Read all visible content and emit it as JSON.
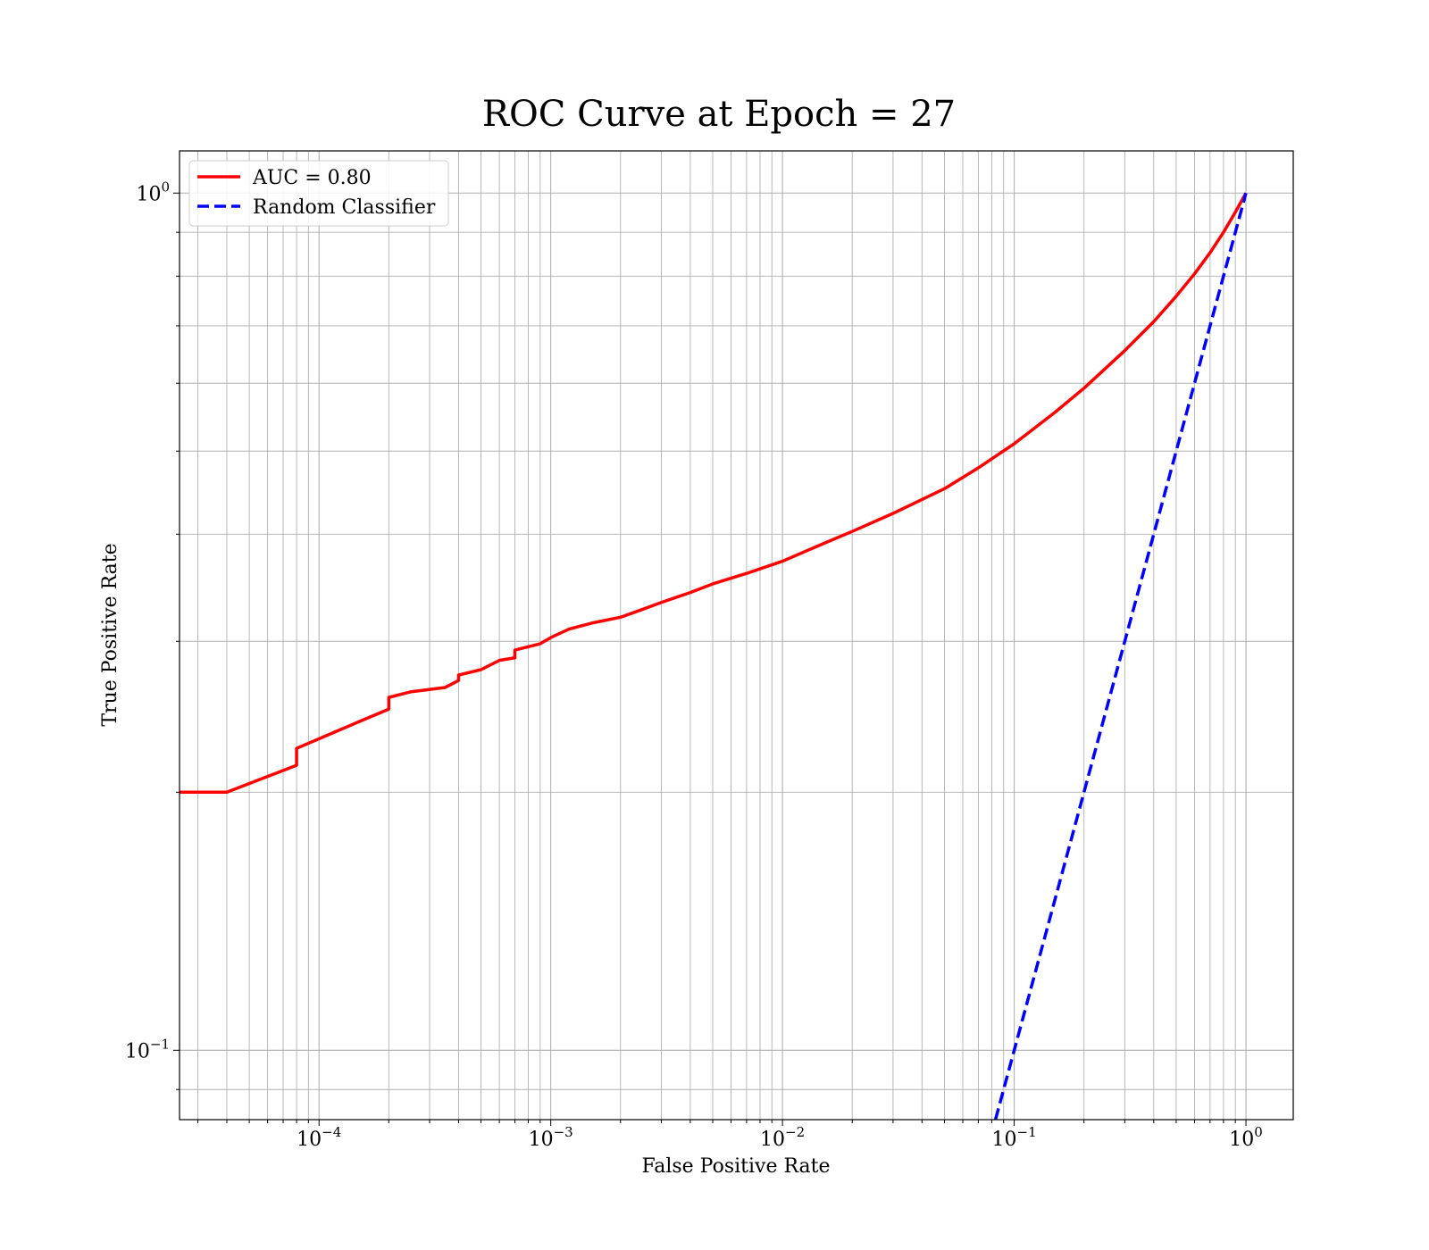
{
  "chart_data": {
    "type": "line",
    "title": "ROC Curve at Epoch = 27",
    "xlabel": "False Positive Rate",
    "ylabel": "True Positive Rate",
    "xscale": "log",
    "yscale": "log",
    "xlim": [
      2.5e-05,
      1.6
    ],
    "ylim": [
      0.083,
      1.12
    ],
    "grid": true,
    "legend_position": "top-left",
    "x_ticks": [
      {
        "value": 0.0001,
        "base": "10",
        "exp": "−4"
      },
      {
        "value": 0.001,
        "base": "10",
        "exp": "−3"
      },
      {
        "value": 0.01,
        "base": "10",
        "exp": "−2"
      },
      {
        "value": 0.1,
        "base": "10",
        "exp": "−1"
      },
      {
        "value": 1,
        "base": "10",
        "exp": "0"
      }
    ],
    "y_ticks": [
      {
        "value": 0.1,
        "base": "10",
        "exp": "−1"
      },
      {
        "value": 1,
        "base": "10",
        "exp": "0"
      }
    ],
    "series": [
      {
        "name": "AUC = 0.80",
        "color": "#ff0000",
        "style": "solid",
        "points": [
          [
            2.5e-05,
            0.2
          ],
          [
            4e-05,
            0.2
          ],
          [
            8e-05,
            0.215
          ],
          [
            8e-05,
            0.225
          ],
          [
            0.00015,
            0.242
          ],
          [
            0.0002,
            0.25
          ],
          [
            0.0002,
            0.258
          ],
          [
            0.00025,
            0.262
          ],
          [
            0.00035,
            0.265
          ],
          [
            0.0004,
            0.27
          ],
          [
            0.0004,
            0.274
          ],
          [
            0.0005,
            0.278
          ],
          [
            0.0006,
            0.285
          ],
          [
            0.0007,
            0.287
          ],
          [
            0.0007,
            0.293
          ],
          [
            0.0009,
            0.298
          ],
          [
            0.001,
            0.303
          ],
          [
            0.0012,
            0.31
          ],
          [
            0.0015,
            0.315
          ],
          [
            0.002,
            0.32
          ],
          [
            0.0025,
            0.327
          ],
          [
            0.003,
            0.333
          ],
          [
            0.004,
            0.342
          ],
          [
            0.005,
            0.35
          ],
          [
            0.007,
            0.36
          ],
          [
            0.01,
            0.372
          ],
          [
            0.015,
            0.39
          ],
          [
            0.02,
            0.403
          ],
          [
            0.03,
            0.423
          ],
          [
            0.05,
            0.452
          ],
          [
            0.07,
            0.478
          ],
          [
            0.1,
            0.51
          ],
          [
            0.15,
            0.555
          ],
          [
            0.2,
            0.592
          ],
          [
            0.3,
            0.655
          ],
          [
            0.4,
            0.708
          ],
          [
            0.5,
            0.758
          ],
          [
            0.6,
            0.805
          ],
          [
            0.7,
            0.852
          ],
          [
            0.8,
            0.9
          ],
          [
            0.9,
            0.95
          ],
          [
            1,
            1
          ]
        ]
      },
      {
        "name": "Random Classifier",
        "color": "#0000ff",
        "style": "dashed",
        "points": [
          [
            0.083,
            0.083
          ],
          [
            1,
            1
          ]
        ]
      }
    ]
  }
}
